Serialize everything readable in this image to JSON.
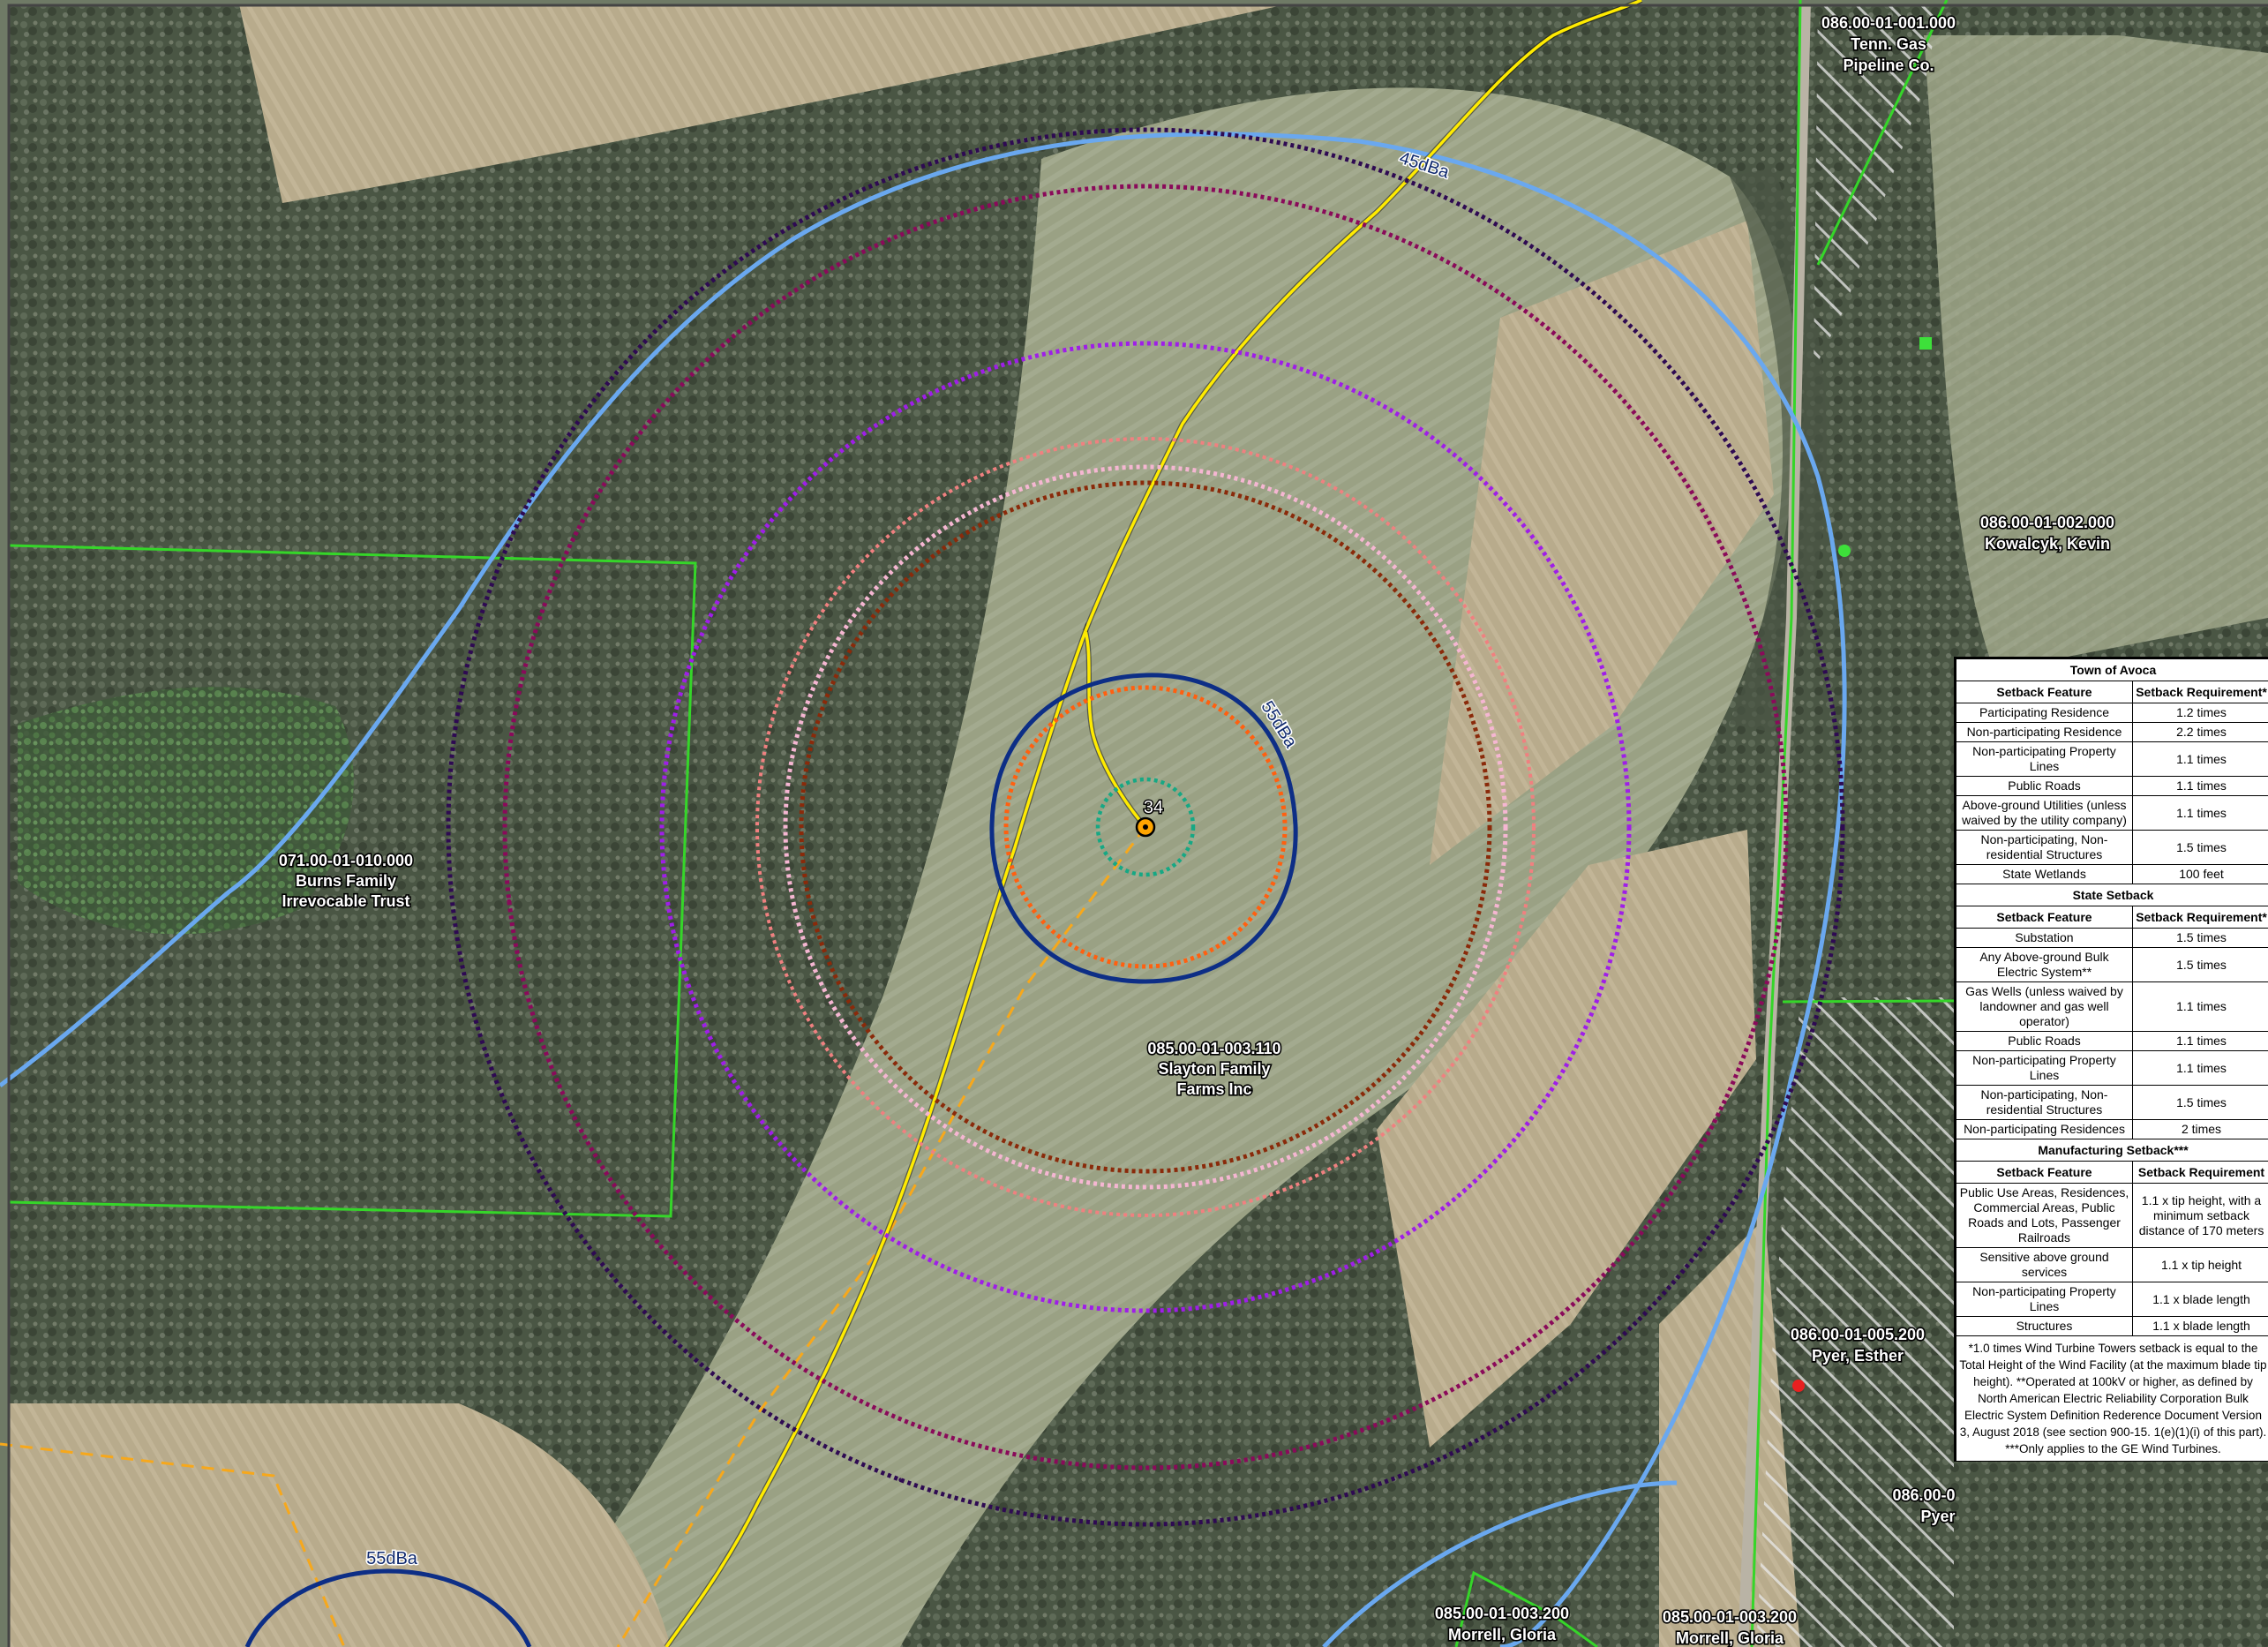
{
  "map": {
    "turbine_label": "34",
    "contour_labels": {
      "c45_top": "45dBa",
      "c55_main": "55dBa",
      "c55_lower": "55dBa"
    },
    "parcels": [
      {
        "id": "086.00-01-001.000",
        "owner_line1": "Tenn. Gas",
        "owner_line2": "Pipeline Co."
      },
      {
        "id": "086.00-01-002.000",
        "owner_line1": "Kowalcyk, Kevin",
        "owner_line2": ""
      },
      {
        "id": "071.00-01-010.000",
        "owner_line1": "Burns Family",
        "owner_line2": "Irrevocable Trust"
      },
      {
        "id": "085.00-01-003.110",
        "owner_line1": "Slayton Family",
        "owner_line2": "Farms Inc"
      },
      {
        "id": "086.00-01-005.200",
        "owner_line1": "Pyer, Esther",
        "owner_line2": ""
      },
      {
        "id": "086.00-0",
        "owner_line1": "Pyer",
        "owner_line2": ""
      },
      {
        "id": "085.00-01-003.200",
        "owner_line1": "Morrell, Gloria",
        "owner_line2": ""
      },
      {
        "id": "085.00-01-003.200",
        "owner_line1": "Morrell, Gloria",
        "owner_line2": ""
      }
    ],
    "colors": {
      "property_line": "#35d629",
      "access_road": "#ffeb00",
      "collection_line": "#f7a81b",
      "contour_45dba": "#6aa8ef",
      "contour_55dba": "#0d2e86",
      "ring_outer": "#2e0a52",
      "ring_2": "#8a0a5a",
      "ring_3": "#9f1ee8",
      "ring_4": "#f08080",
      "ring_5": "#f5b6d2",
      "ring_6": "#8a2a0a",
      "ring_7": "#ff6010",
      "ring_8": "#16a884",
      "turbine_fill": "#ffa500",
      "residence_green": "#3de03a",
      "residence_red": "#e82020"
    }
  },
  "setback_table": {
    "town": {
      "title": "Town of Avoca",
      "header": [
        "Setback Feature",
        "Setback Requirement*"
      ],
      "rows": [
        [
          "Participating Residence",
          "1.2 times"
        ],
        [
          "Non-participating Residence",
          "2.2 times"
        ],
        [
          "Non-participating Property Lines",
          "1.1 times"
        ],
        [
          "Public Roads",
          "1.1 times"
        ],
        [
          "Above-ground Utilities (unless waived by the utility company)",
          "1.1 times"
        ],
        [
          "Non-participating, Non-residential Structures",
          "1.5 times"
        ],
        [
          "State Wetlands",
          "100 feet"
        ]
      ]
    },
    "state": {
      "title": "State Setback",
      "header": [
        "Setback Feature",
        "Setback Requirement*"
      ],
      "rows": [
        [
          "Substation",
          "1.5 times"
        ],
        [
          "Any Above-ground Bulk Electric System**",
          "1.5 times"
        ],
        [
          "Gas Wells (unless waived by landowner and gas well operator)",
          "1.1 times"
        ],
        [
          "Public Roads",
          "1.1 times"
        ],
        [
          "Non-participating Property Lines",
          "1.1 times"
        ],
        [
          "Non-participating, Non-residential Structures",
          "1.5 times"
        ],
        [
          "Non-participating Residences",
          "2 times"
        ]
      ]
    },
    "manufacturing": {
      "title": "Manufacturing Setback***",
      "header": [
        "Setback Feature",
        "Setback Requirement"
      ],
      "rows": [
        [
          "Public Use Areas, Residences, Commercial Areas, Public Roads and Lots, Passenger Railroads",
          "1.1 x tip height, with a minimum setback distance of 170 meters"
        ],
        [
          "Sensitive above ground services",
          "1.1 x tip height"
        ],
        [
          "Non-participating Property Lines",
          "1.1 x blade length"
        ],
        [
          "Structures",
          "1.1 x blade length"
        ]
      ]
    },
    "footnote": "*1.0 times Wind Turbine Towers setback is equal to the Total Height of the Wind Facility (at the maximum blade tip height). **Operated at 100kV or higher, as defined by North American Electric Reliability Corporation Bulk Electric System Definition Rederence Document Version 3, August 2018 (see section 900-15. 1(e)(1)(i) of this part). ***Only applies to the GE Wind Turbines."
  }
}
